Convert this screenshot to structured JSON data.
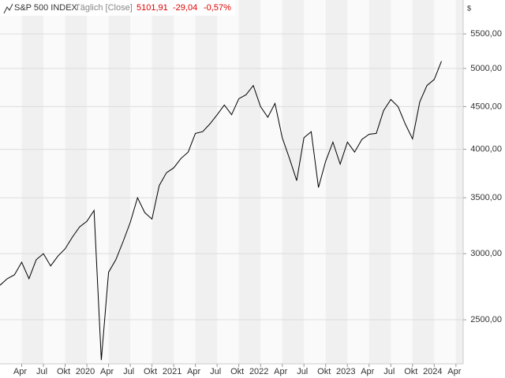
{
  "chart_data": {
    "type": "line",
    "title": "S&P 500 INDEX",
    "subtitle": "Täglich [Close]",
    "annotations": [
      "5101,91",
      "-29,04",
      "-0,57%"
    ],
    "ylabel": "$",
    "log_scale": true,
    "grid": true,
    "color": "#000000",
    "x": [
      "2019-01",
      "2019-02",
      "2019-03",
      "2019-04",
      "2019-05",
      "2019-06",
      "2019-07",
      "2019-08",
      "2019-09",
      "2019-10",
      "2019-11",
      "2019-12",
      "2020-01",
      "2020-02",
      "2020-03",
      "2020-04",
      "2020-05",
      "2020-06",
      "2020-07",
      "2020-08",
      "2020-09",
      "2020-10",
      "2020-11",
      "2020-12",
      "2021-01",
      "2021-02",
      "2021-03",
      "2021-04",
      "2021-05",
      "2021-06",
      "2021-07",
      "2021-08",
      "2021-09",
      "2021-10",
      "2021-11",
      "2021-12",
      "2022-01",
      "2022-02",
      "2022-03",
      "2022-04",
      "2022-05",
      "2022-06",
      "2022-07",
      "2022-08",
      "2022-09",
      "2022-10",
      "2022-11",
      "2022-12",
      "2023-01",
      "2023-02",
      "2023-03",
      "2023-04",
      "2023-05",
      "2023-06",
      "2023-07",
      "2023-08",
      "2023-09",
      "2023-10",
      "2023-11",
      "2023-12",
      "2024-01",
      "2024-02"
    ],
    "series": [
      {
        "name": "S&P 500 INDEX",
        "color": "#000000",
        "values": [
          2750,
          2800,
          2830,
          2930,
          2800,
          2950,
          3000,
          2900,
          2980,
          3040,
          3140,
          3230,
          3280,
          3380,
          2237,
          2850,
          2950,
          3100,
          3270,
          3500,
          3360,
          3300,
          3620,
          3750,
          3800,
          3900,
          3970,
          4180,
          4200,
          4290,
          4400,
          4520,
          4400,
          4600,
          4650,
          4770,
          4500,
          4370,
          4540,
          4130,
          3900,
          3670,
          4130,
          4200,
          3600,
          3870,
          4080,
          3840,
          4080,
          3970,
          4110,
          4170,
          4180,
          4450,
          4590,
          4500,
          4290,
          4117,
          4560,
          4770,
          4850,
          5100
        ]
      }
    ],
    "xlim": [
      "2019-01",
      "2024-05"
    ],
    "xticks": [
      {
        "value": "2019-04",
        "label": "Apr"
      },
      {
        "value": "2019-07",
        "label": "Jul"
      },
      {
        "value": "2019-10",
        "label": "Okt"
      },
      {
        "value": "2020-01",
        "label": "2020"
      },
      {
        "value": "2020-04",
        "label": "Apr"
      },
      {
        "value": "2020-07",
        "label": "Jul"
      },
      {
        "value": "2020-10",
        "label": "Okt"
      },
      {
        "value": "2021-01",
        "label": "2021"
      },
      {
        "value": "2021-04",
        "label": "Apr"
      },
      {
        "value": "2021-07",
        "label": "Jul"
      },
      {
        "value": "2021-10",
        "label": "Okt"
      },
      {
        "value": "2022-01",
        "label": "2022"
      },
      {
        "value": "2022-04",
        "label": "Apr"
      },
      {
        "value": "2022-07",
        "label": "Jul"
      },
      {
        "value": "2022-10",
        "label": "Okt"
      },
      {
        "value": "2023-01",
        "label": "2023"
      },
      {
        "value": "2023-04",
        "label": "Apr"
      },
      {
        "value": "2023-07",
        "label": "Jul"
      },
      {
        "value": "2023-10",
        "label": "Okt"
      },
      {
        "value": "2024-01",
        "label": "2024"
      },
      {
        "value": "2024-04",
        "label": "Apr"
      }
    ],
    "ylim": [
      2214,
      6038
    ],
    "yticks": [
      {
        "value": 2500,
        "label": "2500,00"
      },
      {
        "value": 3000,
        "label": "3000,00"
      },
      {
        "value": 3500,
        "label": "3500,00"
      },
      {
        "value": 4000,
        "label": "4000,00"
      },
      {
        "value": 4500,
        "label": "4500,00"
      },
      {
        "value": 5000,
        "label": "5000,00"
      },
      {
        "value": 5500,
        "label": "5500,00"
      }
    ]
  }
}
